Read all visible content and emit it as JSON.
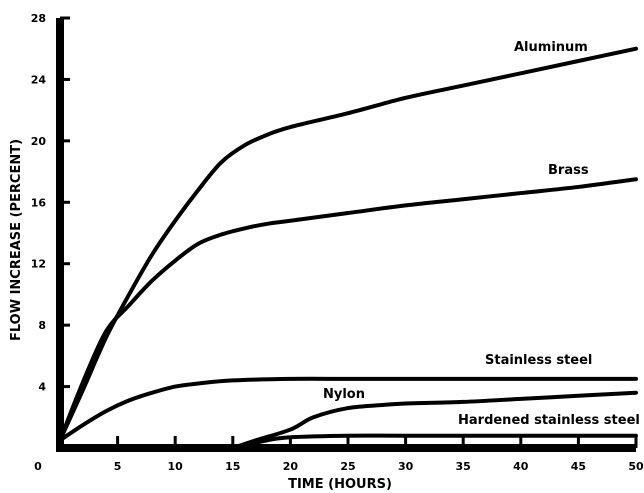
{
  "chart_data": {
    "type": "line",
    "title": "",
    "xlabel": "TIME (HOURS)",
    "ylabel": "FLOW INCREASE (PERCENT)",
    "xlim": [
      0,
      50
    ],
    "ylim": [
      0,
      28
    ],
    "x_ticks": [
      0,
      5,
      10,
      15,
      20,
      25,
      30,
      35,
      40,
      45,
      50
    ],
    "y_ticks": [
      4,
      8,
      12,
      16,
      20,
      24,
      28
    ],
    "grid": false,
    "legend": "none (series labeled directly on curves)",
    "series": [
      {
        "name": "Aluminum",
        "x": [
          0,
          2,
          4,
          6,
          8,
          10,
          12,
          14,
          16,
          18,
          20,
          25,
          30,
          35,
          40,
          45,
          50
        ],
        "y": [
          0.5,
          3.8,
          7.2,
          10.0,
          12.6,
          14.8,
          16.8,
          18.6,
          19.7,
          20.4,
          20.9,
          21.8,
          22.8,
          23.6,
          24.4,
          25.2,
          26.0
        ]
      },
      {
        "name": "Brass",
        "x": [
          0,
          2,
          4,
          6,
          8,
          10,
          12,
          14,
          16,
          18,
          20,
          25,
          30,
          35,
          40,
          45,
          50
        ],
        "y": [
          0.5,
          4.3,
          7.6,
          9.3,
          10.9,
          12.2,
          13.3,
          13.9,
          14.3,
          14.6,
          14.8,
          15.3,
          15.8,
          16.2,
          16.6,
          17.0,
          17.5
        ]
      },
      {
        "name": "Stainless steel",
        "x": [
          0,
          2,
          4,
          6,
          8,
          10,
          12,
          15,
          20,
          25,
          30,
          40,
          50
        ],
        "y": [
          0.5,
          1.5,
          2.4,
          3.1,
          3.6,
          4.0,
          4.2,
          4.4,
          4.5,
          4.5,
          4.5,
          4.5,
          4.5
        ]
      },
      {
        "name": "Nylon",
        "x": [
          15,
          17,
          20,
          22,
          25,
          28,
          30,
          35,
          40,
          45,
          50
        ],
        "y": [
          0.0,
          0.5,
          1.2,
          2.0,
          2.6,
          2.8,
          2.9,
          3.0,
          3.2,
          3.4,
          3.6
        ]
      },
      {
        "name": "Hardened stainless steel",
        "x": [
          15,
          18,
          20,
          25,
          30,
          40,
          50
        ],
        "y": [
          0.0,
          0.5,
          0.7,
          0.8,
          0.8,
          0.8,
          0.8
        ]
      }
    ],
    "annotations": [
      "Aluminum",
      "Brass",
      "Stainless steel",
      "Nylon",
      "Hardened stainless steel"
    ]
  }
}
